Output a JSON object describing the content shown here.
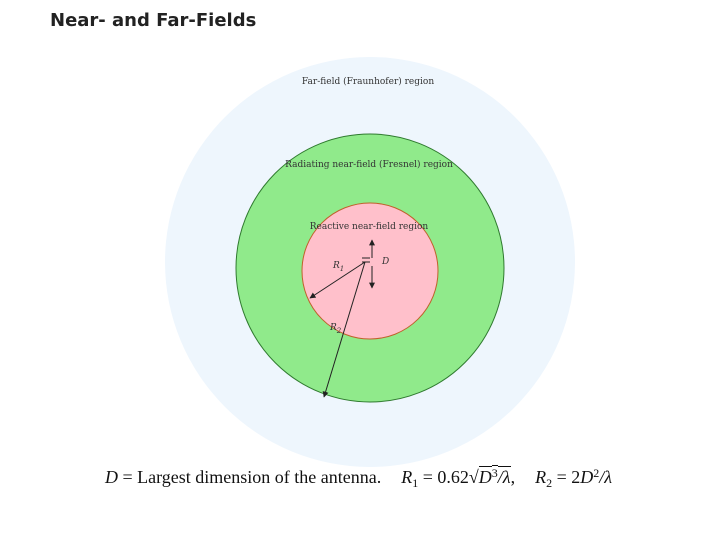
{
  "header": {
    "title": "Near- and Far-Fields"
  },
  "diagram": {
    "regions": [
      {
        "label": "Far-field (Fraunhofer) region"
      },
      {
        "label": "Radiating near-field (Fresnel) region"
      },
      {
        "label": "Reactive near-field region"
      }
    ],
    "radii": [
      {
        "symbol": "R",
        "subscript": "1"
      },
      {
        "symbol": "R",
        "subscript": "2"
      }
    ],
    "dimension": "D"
  },
  "footer": {
    "segments": [
      {
        "text": "D",
        "style": "italic"
      },
      {
        "text": " = Largest dimension of the antenna.",
        "style": "plain"
      },
      {
        "text": "R",
        "style": "italic"
      },
      {
        "text": "1",
        "style": "sub"
      },
      {
        "text": " = 0.62",
        "style": "plain"
      },
      {
        "text": "√",
        "style": "plain"
      },
      {
        "text": "D",
        "style": "italic-over"
      },
      {
        "text": "3",
        "style": "sup-over"
      },
      {
        "text": "/λ",
        "style": "italic-over"
      },
      {
        "text": ",",
        "style": "plain"
      },
      {
        "text": "R",
        "style": "italic"
      },
      {
        "text": "2",
        "style": "sub"
      },
      {
        "text": " = 2",
        "style": "plain"
      },
      {
        "text": "D",
        "style": "italic"
      },
      {
        "text": "2",
        "style": "sup"
      },
      {
        "text": "/λ",
        "style": "italic"
      }
    ]
  }
}
